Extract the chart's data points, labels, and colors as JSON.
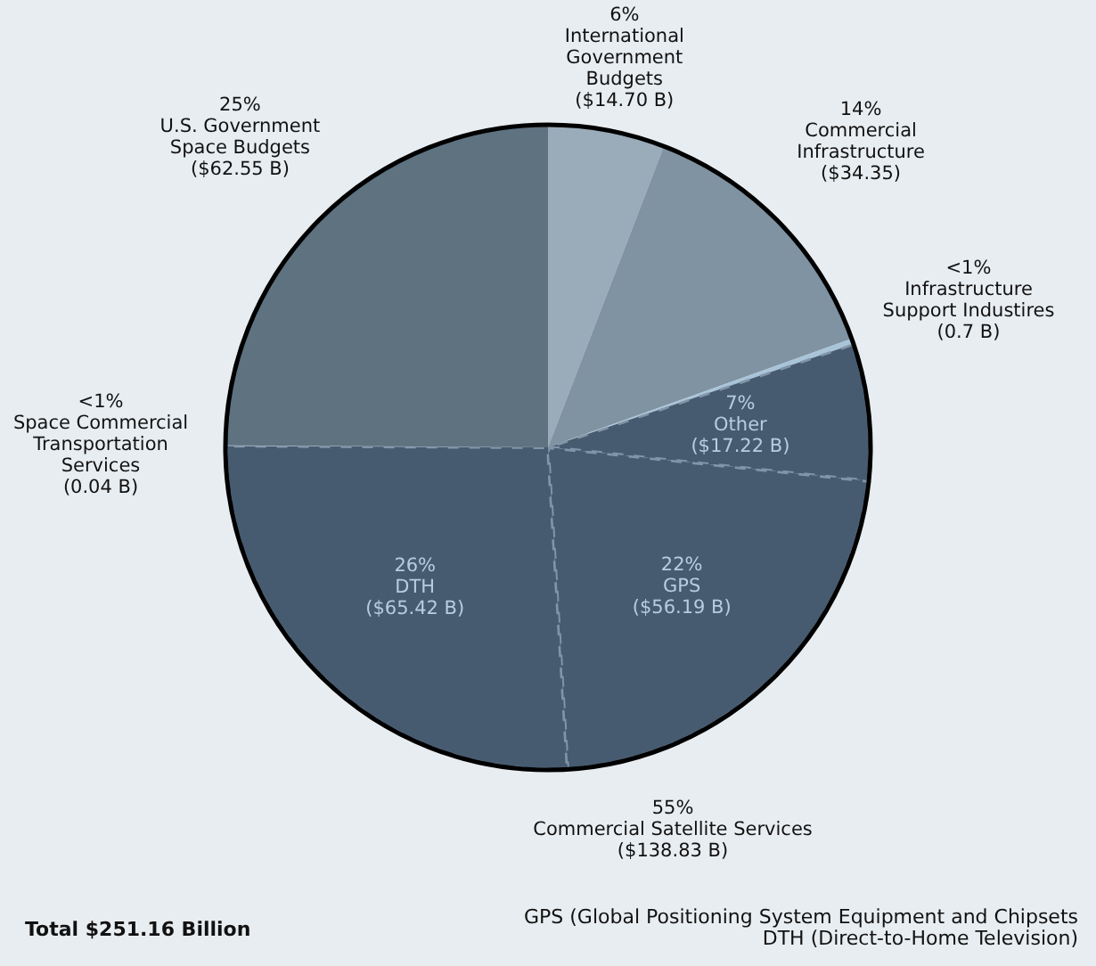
{
  "chart_data": {
    "type": "pie",
    "categories": [
      "International Government Budgets",
      "Commercial Infrastructure",
      "Infrastructure Support Industires",
      "Other",
      "GPS",
      "DTH",
      "Space Commercial Transportation Services",
      "U.S. Government Space Budgets"
    ],
    "values": [
      14.7,
      34.35,
      0.7,
      17.22,
      56.19,
      65.42,
      0.04,
      62.55
    ],
    "colors": [
      "#9aabb9",
      "#7f93a2",
      "#a9c4d9",
      "#475b70",
      "#475b70",
      "#475b70",
      "#a9c4d9",
      "#5e7280"
    ],
    "value_labels": [
      "($14.70 B)",
      "($34.35)",
      "(0.7 B)",
      "($17.22 B)",
      "($56.19 B)",
      "($65.42 B)",
      "(0.04 B)",
      "($62.55 B)"
    ],
    "annotations": [
      "6%",
      "14%",
      "<1%",
      "7%",
      "22%",
      "26%",
      "<1%",
      "25%",
      "55%",
      "Commercial Satellite Services",
      "($138.83 B)",
      "Total $251.16 Billion",
      "GPS (Global Positioning System Equipment and Chipsets",
      "DTH (Direct-to-Home Television)"
    ],
    "legend": false
  }
}
